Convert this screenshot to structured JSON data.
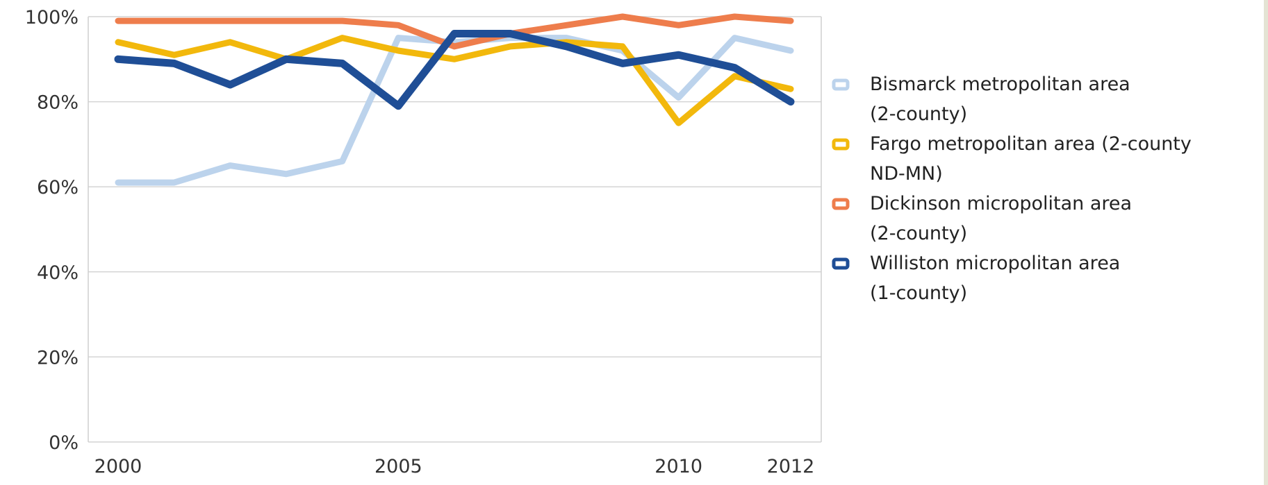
{
  "chart_data": {
    "type": "line",
    "x": [
      2000,
      2001,
      2002,
      2003,
      2004,
      2005,
      2006,
      2007,
      2008,
      2009,
      2010,
      2011,
      2012
    ],
    "x_tick_labels": [
      "2000",
      "2005",
      "2010",
      "2012"
    ],
    "x_tick_values": [
      2000,
      2005,
      2010,
      2012
    ],
    "y_tick_labels": [
      "0%",
      "20%",
      "40%",
      "60%",
      "80%",
      "100%"
    ],
    "y_tick_values": [
      0,
      20,
      40,
      60,
      80,
      100
    ],
    "ylim": [
      0,
      100
    ],
    "xlim": [
      2000,
      2012
    ],
    "y_unit": "%",
    "grid": "horizontal",
    "legend_position": "right",
    "series": [
      {
        "name": "Bismarck metropolitan area (2-county)",
        "legend_lines": [
          "Bismarck metropolitan area",
          "(2-county)"
        ],
        "color": "#bcd3ec",
        "values": [
          61,
          61,
          65,
          63,
          66,
          95,
          94,
          95,
          95,
          92,
          81,
          95,
          92
        ]
      },
      {
        "name": "Fargo metropolitan area (2-county ND-MN)",
        "legend_lines": [
          "Fargo metropolitan area (2-county",
          "ND-MN)"
        ],
        "color": "#f2b80c",
        "values": [
          94,
          91,
          94,
          90,
          95,
          92,
          90,
          93,
          94,
          93,
          75,
          86,
          83
        ]
      },
      {
        "name": "Dickinson micropolitan area (2-county)",
        "legend_lines": [
          "Dickinson micropolitan area",
          "(2-county)"
        ],
        "color": "#ee7d4c",
        "values": [
          99,
          99,
          99,
          99,
          99,
          98,
          93,
          96,
          98,
          100,
          98,
          100,
          99
        ]
      },
      {
        "name": "Williston micropolitan area (1-county)",
        "legend_lines": [
          "Williston micropolitan area",
          "(1-county)"
        ],
        "color": "#1f4e96",
        "values": [
          90,
          89,
          84,
          90,
          89,
          79,
          96,
          96,
          93,
          89,
          91,
          88,
          80
        ]
      }
    ]
  }
}
